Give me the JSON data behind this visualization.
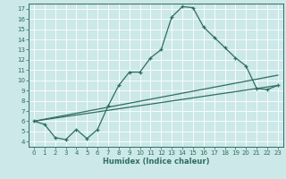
{
  "xlabel": "Humidex (Indice chaleur)",
  "bg_color": "#cce8e8",
  "line_color": "#2e6e62",
  "grid_color": "#b0d8d8",
  "xlim": [
    -0.5,
    23.5
  ],
  "ylim": [
    3.5,
    17.5
  ],
  "xticks": [
    0,
    1,
    2,
    3,
    4,
    5,
    6,
    7,
    8,
    9,
    10,
    11,
    12,
    13,
    14,
    15,
    16,
    17,
    18,
    19,
    20,
    21,
    22,
    23
  ],
  "yticks": [
    4,
    5,
    6,
    7,
    8,
    9,
    10,
    11,
    12,
    13,
    14,
    15,
    16,
    17
  ],
  "line1_x": [
    0,
    1,
    2,
    3,
    4,
    5,
    6,
    7,
    8,
    9,
    10,
    11,
    12,
    13,
    14,
    15,
    16,
    17,
    18,
    19,
    20,
    21,
    22,
    23
  ],
  "line1_y": [
    6.0,
    5.7,
    4.4,
    4.2,
    5.2,
    4.3,
    5.2,
    7.5,
    9.5,
    10.8,
    10.8,
    12.2,
    13.0,
    16.2,
    17.2,
    17.1,
    15.2,
    14.2,
    13.2,
    12.2,
    11.4,
    9.2,
    9.1,
    9.5
  ],
  "line2_x": [
    0,
    23
  ],
  "line2_y": [
    6.0,
    10.5
  ],
  "line3_x": [
    0,
    23
  ],
  "line3_y": [
    6.0,
    9.5
  ]
}
